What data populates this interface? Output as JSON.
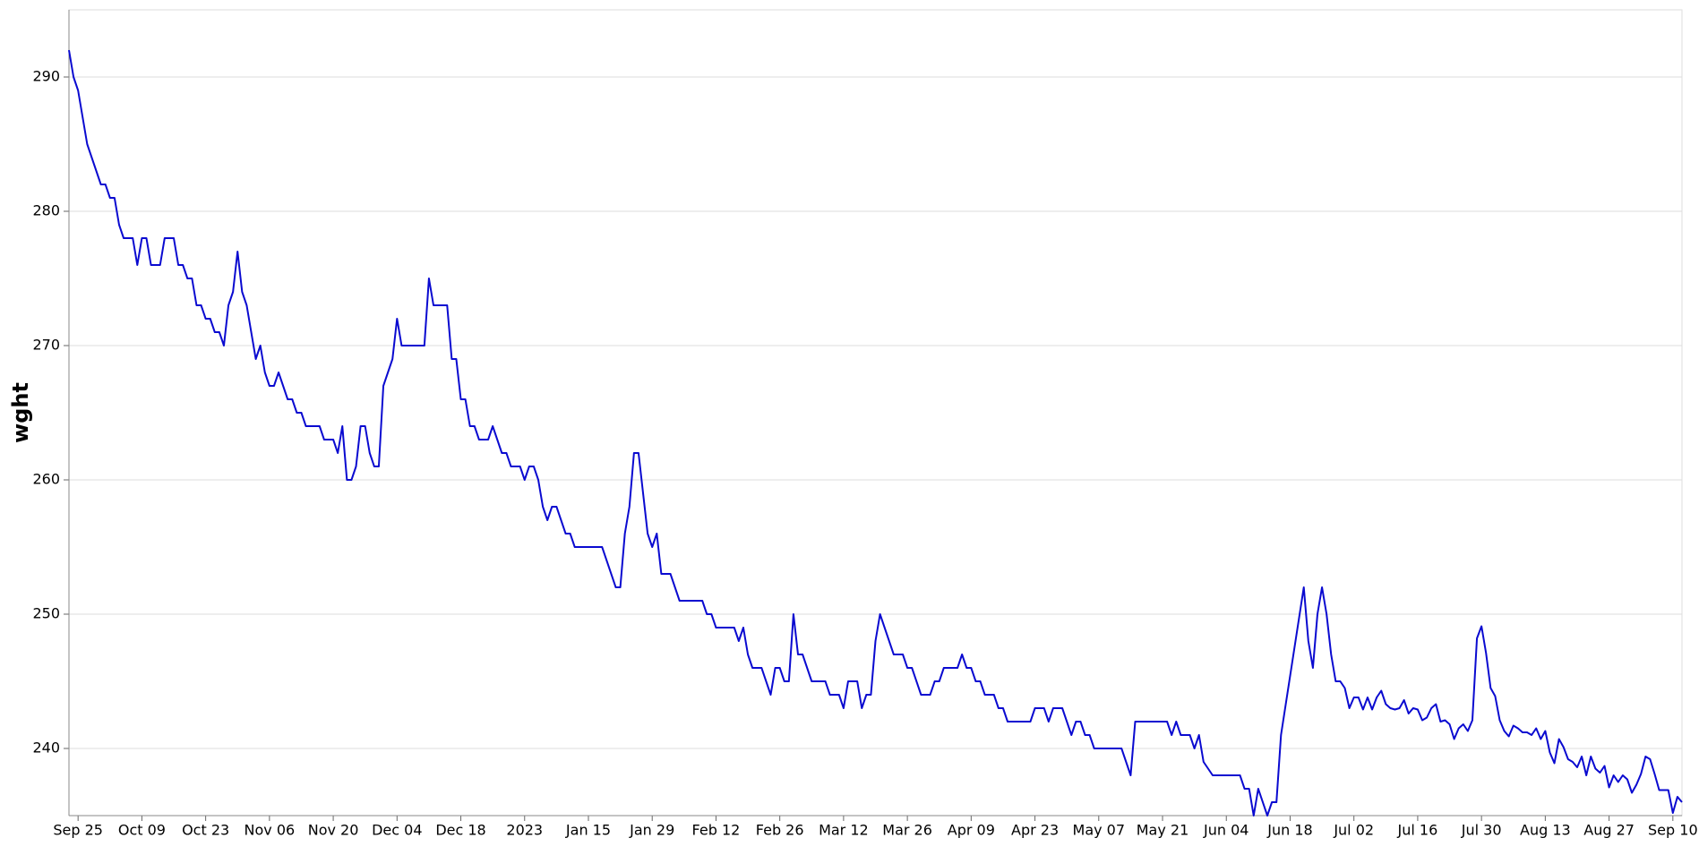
{
  "chart_data": {
    "type": "line",
    "y_label": "wght",
    "color": "#0a0ad0",
    "grid": true,
    "ylim": [
      235,
      295
    ],
    "yticks": [
      240,
      250,
      260,
      270,
      280,
      290
    ],
    "xlim": [
      "2022-09-23",
      "2023-09-12"
    ],
    "xticks": [
      {
        "value": "2022-09-25",
        "label": "Sep 25"
      },
      {
        "value": "2022-10-09",
        "label": "Oct 09"
      },
      {
        "value": "2022-10-23",
        "label": "Oct 23"
      },
      {
        "value": "2022-11-06",
        "label": "Nov 06"
      },
      {
        "value": "2022-11-20",
        "label": "Nov 20"
      },
      {
        "value": "2022-12-04",
        "label": "Dec 04"
      },
      {
        "value": "2022-12-18",
        "label": "Dec 18"
      },
      {
        "value": "2023-01-01",
        "label": "2023"
      },
      {
        "value": "2023-01-15",
        "label": "Jan 15"
      },
      {
        "value": "2023-01-29",
        "label": "Jan 29"
      },
      {
        "value": "2023-02-12",
        "label": "Feb 12"
      },
      {
        "value": "2023-02-26",
        "label": "Feb 26"
      },
      {
        "value": "2023-03-12",
        "label": "Mar 12"
      },
      {
        "value": "2023-03-26",
        "label": "Mar 26"
      },
      {
        "value": "2023-04-09",
        "label": "Apr 09"
      },
      {
        "value": "2023-04-23",
        "label": "Apr 23"
      },
      {
        "value": "2023-05-07",
        "label": "May 07"
      },
      {
        "value": "2023-05-21",
        "label": "May 21"
      },
      {
        "value": "2023-06-04",
        "label": "Jun 04"
      },
      {
        "value": "2023-06-18",
        "label": "Jun 18"
      },
      {
        "value": "2023-07-02",
        "label": "Jul 02"
      },
      {
        "value": "2023-07-16",
        "label": "Jul 16"
      },
      {
        "value": "2023-07-30",
        "label": "Jul 30"
      },
      {
        "value": "2023-08-13",
        "label": "Aug 13"
      },
      {
        "value": "2023-08-27",
        "label": "Aug 27"
      },
      {
        "value": "2023-09-10",
        "label": "Sep 10"
      }
    ],
    "x": [
      "2022-09-23",
      "2022-09-24",
      "2022-09-25",
      "2022-09-27",
      "2022-09-30",
      "2022-10-01",
      "2022-10-02",
      "2022-10-03",
      "2022-10-04",
      "2022-10-05",
      "2022-10-07",
      "2022-10-08",
      "2022-10-09",
      "2022-10-10",
      "2022-10-11",
      "2022-10-13",
      "2022-10-14",
      "2022-10-16",
      "2022-10-17",
      "2022-10-18",
      "2022-10-19",
      "2022-10-20",
      "2022-10-21",
      "2022-10-22",
      "2022-10-23",
      "2022-10-24",
      "2022-10-25",
      "2022-10-26",
      "2022-10-27",
      "2022-10-28",
      "2022-10-29",
      "2022-10-30",
      "2022-10-31",
      "2022-11-01",
      "2022-11-03",
      "2022-11-04",
      "2022-11-05",
      "2022-11-06",
      "2022-11-07",
      "2022-11-08",
      "2022-11-10",
      "2022-11-11",
      "2022-11-12",
      "2022-11-13",
      "2022-11-14",
      "2022-11-17",
      "2022-11-18",
      "2022-11-20",
      "2022-11-21",
      "2022-11-22",
      "2022-11-23",
      "2022-11-24",
      "2022-11-25",
      "2022-11-26",
      "2022-11-27",
      "2022-11-28",
      "2022-11-29",
      "2022-11-30",
      "2022-12-01",
      "2022-12-03",
      "2022-12-04",
      "2022-12-05",
      "2022-12-10",
      "2022-12-11",
      "2022-12-12",
      "2022-12-15",
      "2022-12-16",
      "2022-12-17",
      "2022-12-18",
      "2022-12-19",
      "2022-12-20",
      "2022-12-21",
      "2022-12-22",
      "2022-12-24",
      "2022-12-25",
      "2022-12-26",
      "2022-12-27",
      "2022-12-28",
      "2022-12-29",
      "2022-12-31",
      "2023-01-01",
      "2023-01-02",
      "2023-01-03",
      "2023-01-04",
      "2023-01-05",
      "2023-01-06",
      "2023-01-07",
      "2023-01-08",
      "2023-01-09",
      "2023-01-10",
      "2023-01-11",
      "2023-01-12",
      "2023-01-18",
      "2023-01-21",
      "2023-01-22",
      "2023-01-23",
      "2023-01-24",
      "2023-01-25",
      "2023-01-26",
      "2023-01-28",
      "2023-01-29",
      "2023-01-30",
      "2023-01-31",
      "2023-02-02",
      "2023-02-04",
      "2023-02-09",
      "2023-02-10",
      "2023-02-11",
      "2023-02-12",
      "2023-02-16",
      "2023-02-17",
      "2023-02-18",
      "2023-02-19",
      "2023-02-20",
      "2023-02-22",
      "2023-02-24",
      "2023-02-25",
      "2023-02-26",
      "2023-02-27",
      "2023-02-28",
      "2023-03-01",
      "2023-03-02",
      "2023-03-03",
      "2023-03-05",
      "2023-03-08",
      "2023-03-09",
      "2023-03-11",
      "2023-03-12",
      "2023-03-13",
      "2023-03-15",
      "2023-03-16",
      "2023-03-17",
      "2023-03-18",
      "2023-03-19",
      "2023-03-20",
      "2023-03-23",
      "2023-03-25",
      "2023-03-26",
      "2023-03-27",
      "2023-03-29",
      "2023-03-31",
      "2023-04-01",
      "2023-04-02",
      "2023-04-03",
      "2023-04-06",
      "2023-04-07",
      "2023-04-08",
      "2023-04-09",
      "2023-04-10",
      "2023-04-11",
      "2023-04-12",
      "2023-04-14",
      "2023-04-15",
      "2023-04-16",
      "2023-04-17",
      "2023-04-22",
      "2023-04-23",
      "2023-04-25",
      "2023-04-26",
      "2023-04-27",
      "2023-04-29",
      "2023-04-30",
      "2023-05-01",
      "2023-05-02",
      "2023-05-03",
      "2023-05-04",
      "2023-05-05",
      "2023-05-06",
      "2023-05-12",
      "2023-05-13",
      "2023-05-14",
      "2023-05-15",
      "2023-05-22",
      "2023-05-23",
      "2023-05-24",
      "2023-05-25",
      "2023-05-27",
      "2023-05-28",
      "2023-05-29",
      "2023-05-30",
      "2023-06-01",
      "2023-06-07",
      "2023-06-08",
      "2023-06-09",
      "2023-06-10",
      "2023-06-11",
      "2023-06-13",
      "2023-06-14",
      "2023-06-15",
      "2023-06-16",
      "2023-06-21",
      "2023-06-22",
      "2023-06-23",
      "2023-06-24",
      "2023-06-25",
      "2023-06-26",
      "2023-06-27",
      "2023-06-28",
      "2023-06-29",
      "2023-06-30",
      "2023-07-01",
      "2023-07-02",
      "2023-07-03",
      "2023-07-04",
      "2023-07-05",
      "2023-07-06",
      "2023-07-07",
      "2023-07-08",
      "2023-07-09",
      "2023-07-10",
      "2023-07-11",
      "2023-07-12",
      "2023-07-13",
      "2023-07-14",
      "2023-07-15",
      "2023-07-16",
      "2023-07-17",
      "2023-07-18",
      "2023-07-19",
      "2023-07-20",
      "2023-07-21",
      "2023-07-22",
      "2023-07-23",
      "2023-07-24",
      "2023-07-25",
      "2023-07-26",
      "2023-07-27",
      "2023-07-28",
      "2023-07-29",
      "2023-07-30",
      "2023-07-31",
      "2023-08-01",
      "2023-08-02",
      "2023-08-03",
      "2023-08-04",
      "2023-08-05",
      "2023-08-06",
      "2023-08-07",
      "2023-08-08",
      "2023-08-09",
      "2023-08-10",
      "2023-08-11",
      "2023-08-12",
      "2023-08-13",
      "2023-08-14",
      "2023-08-15",
      "2023-08-16",
      "2023-08-17",
      "2023-08-18",
      "2023-08-19",
      "2023-08-20",
      "2023-08-21",
      "2023-08-22",
      "2023-08-23",
      "2023-08-24",
      "2023-08-25",
      "2023-08-26",
      "2023-08-27",
      "2023-08-28",
      "2023-08-29",
      "2023-08-30",
      "2023-08-31",
      "2023-09-01",
      "2023-09-02",
      "2023-09-03",
      "2023-09-04",
      "2023-09-05",
      "2023-09-06",
      "2023-09-07",
      "2023-09-09",
      "2023-09-10",
      "2023-09-11",
      "2023-09-12"
    ],
    "values": [
      292,
      290,
      289,
      285,
      282,
      282,
      281,
      281,
      279,
      278,
      278,
      276,
      278,
      278,
      276,
      276,
      278,
      278,
      276,
      276,
      275,
      275,
      273,
      273,
      272,
      272,
      271,
      271,
      270,
      273,
      274,
      277,
      274,
      273,
      269,
      270,
      268,
      267,
      267,
      268,
      266,
      266,
      265,
      265,
      264,
      264,
      263,
      263,
      262,
      264,
      260,
      260,
      261,
      264,
      264,
      262,
      261,
      261,
      267,
      269,
      272,
      270,
      270,
      275,
      273,
      273,
      269,
      269,
      266,
      266,
      264,
      264,
      263,
      263,
      264,
      263,
      262,
      262,
      261,
      261,
      260,
      261,
      261,
      260,
      258,
      257,
      258,
      258,
      257,
      256,
      256,
      255,
      255,
      252,
      252,
      256,
      258,
      262,
      262,
      256,
      255,
      256,
      253,
      253,
      251,
      251,
      250,
      250,
      249,
      249,
      248,
      249,
      247,
      246,
      246,
      244,
      246,
      246,
      245,
      245,
      250,
      247,
      247,
      245,
      245,
      244,
      244,
      243,
      245,
      245,
      243,
      244,
      244,
      248,
      250,
      247,
      247,
      246,
      246,
      244,
      244,
      245,
      245,
      246,
      246,
      247,
      246,
      246,
      245,
      245,
      244,
      244,
      243,
      243,
      242,
      242,
      243,
      243,
      242,
      243,
      243,
      242,
      241,
      242,
      242,
      241,
      241,
      240,
      240,
      239,
      238,
      242,
      242,
      241,
      242,
      241,
      241,
      240,
      241,
      239,
      238,
      238,
      237,
      237,
      235,
      237,
      235,
      236,
      236,
      241,
      252,
      248,
      246,
      250,
      252,
      250,
      247,
      245,
      245,
      244.5,
      243,
      243.8,
      243.8,
      242.9,
      243.8,
      242.9,
      243.8,
      244.3,
      243.3,
      243,
      242.9,
      243,
      243.6,
      242.6,
      243,
      242.9,
      242.1,
      242.3,
      243,
      243.3,
      242,
      242.1,
      241.8,
      240.7,
      241.5,
      241.8,
      241.3,
      242.1,
      248.2,
      249.1,
      247.1,
      244.5,
      243.9,
      242.1,
      241.3,
      240.9,
      241.7,
      241.5,
      241.2,
      241.2,
      241,
      241.5,
      240.7,
      241.3,
      239.7,
      238.9,
      240.7,
      240.1,
      239.2,
      239,
      238.6,
      239.4,
      238,
      239.4,
      238.5,
      238.2,
      238.7,
      237.1,
      238,
      237.5,
      238,
      237.7,
      236.7,
      237.3,
      238.1,
      239.4,
      239.2,
      238.1,
      236.9,
      236.9,
      235.2,
      236.4,
      236
    ]
  }
}
